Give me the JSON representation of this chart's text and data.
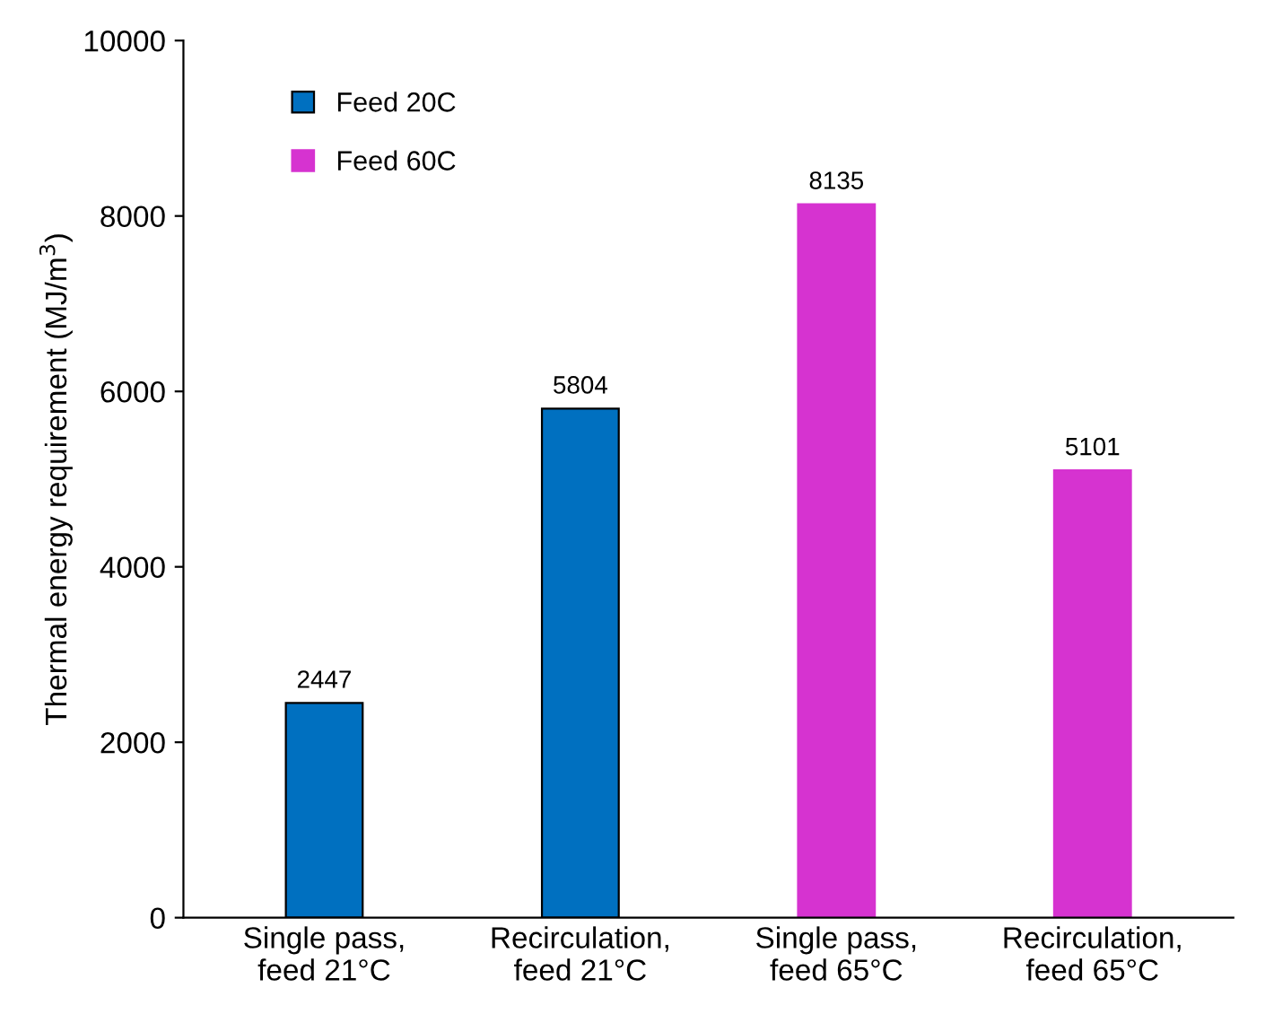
{
  "chart_data": {
    "type": "bar",
    "categories": [
      "Single pass,\nfeed 21°C",
      "Recirculation,\nfeed 21°C",
      "Single pass,\nfeed 65°C",
      "Recirculation,\nfeed 65°C"
    ],
    "series": [
      {
        "name": "Feed 20C",
        "color": "#0070c0",
        "values": [
          2447,
          5804,
          null,
          null
        ]
      },
      {
        "name": "Feed 60C",
        "color": "#d633d0",
        "values": [
          null,
          null,
          8135,
          5101
        ]
      }
    ],
    "ylabel": "Thermal energy requirement (MJ/m$^{3}$)",
    "ylim": [
      0,
      10000
    ],
    "yticks": [
      0,
      2000,
      4000,
      6000,
      8000,
      10000
    ],
    "data_labels": true,
    "legend": "top left",
    "grid": false
  }
}
